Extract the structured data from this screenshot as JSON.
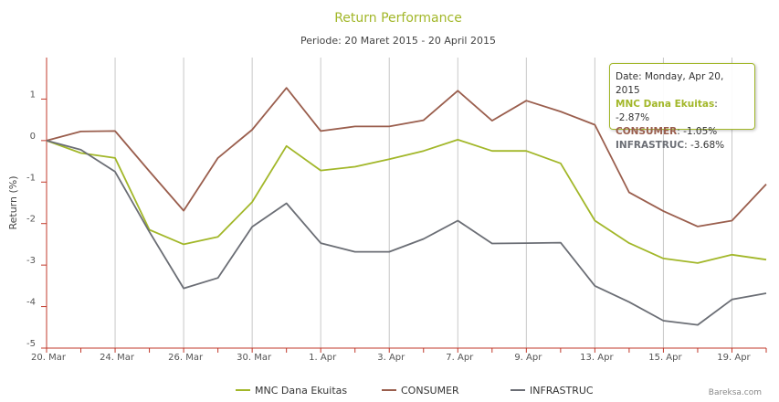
{
  "chart_data": {
    "type": "line",
    "title": "Return Performance",
    "subtitle": "Periode: 20 Maret 2015 - 20 April 2015",
    "ylabel": "Return (%)",
    "xlabel": "",
    "ylim": [
      -5,
      2
    ],
    "yticks": [
      1,
      0,
      -1,
      -2,
      -3,
      -4,
      -5
    ],
    "x_tick_labels": [
      "20. Mar",
      "24. Mar",
      "26. Mar",
      "30. Mar",
      "1. Apr",
      "3. Apr",
      "7. Apr",
      "9. Apr",
      "13. Apr",
      "15. Apr",
      "19. Apr"
    ],
    "x_tick_index": [
      0,
      2,
      4,
      6,
      8,
      10,
      12,
      14,
      16,
      18,
      20
    ],
    "x": [
      "20. Mar",
      "23. Mar",
      "24. Mar",
      "25. Mar",
      "26. Mar",
      "27. Mar",
      "30. Mar",
      "31. Mar",
      "1. Apr",
      "2. Apr",
      "3. Apr",
      "6. Apr",
      "7. Apr",
      "8. Apr",
      "9. Apr",
      "10. Apr",
      "13. Apr",
      "14. Apr",
      "15. Apr",
      "16. Apr",
      "17. Apr",
      "20. Apr"
    ],
    "series": [
      {
        "name": "MNC Dana Ekuitas",
        "color": "#a2b729",
        "values": [
          0.0,
          -0.3,
          -0.42,
          -2.15,
          -2.5,
          -2.32,
          -1.48,
          -0.13,
          -0.72,
          -0.63,
          -0.45,
          -0.25,
          0.02,
          -0.25,
          -0.25,
          -0.55,
          -1.93,
          -2.47,
          -2.84,
          -2.95,
          -2.75,
          -2.87
        ]
      },
      {
        "name": "CONSUMER",
        "color": "#9a5e4d",
        "values": [
          0.0,
          0.22,
          0.23,
          -0.74,
          -1.69,
          -0.42,
          0.26,
          1.27,
          0.23,
          0.34,
          0.34,
          0.49,
          1.2,
          0.48,
          0.96,
          0.7,
          0.38,
          -1.25,
          -1.7,
          -2.07,
          -1.93,
          -1.05
        ]
      },
      {
        "name": "INFRASTRUC",
        "color": "#6b6e75",
        "values": [
          0.0,
          -0.22,
          -0.75,
          -2.2,
          -3.56,
          -3.31,
          -2.08,
          -1.51,
          -2.47,
          -2.68,
          -2.68,
          -2.37,
          -1.93,
          -2.48,
          -2.47,
          -2.46,
          -3.5,
          -3.89,
          -4.34,
          -4.44,
          -3.83,
          -3.68
        ]
      }
    ]
  },
  "tooltip": {
    "date": "Date: Monday, Apr 20, 2015",
    "rows": [
      {
        "name": "MNC Dana Ekuitas",
        "value": ": -2.87%",
        "color": "#a2b729"
      },
      {
        "name": "CONSUMER",
        "value": ": -1.05%",
        "color": "#9a5e4d"
      },
      {
        "name": "INFRASTRUC",
        "value": ": -3.68%",
        "color": "#6b6e75"
      }
    ]
  },
  "credit": "Bareksa.com"
}
